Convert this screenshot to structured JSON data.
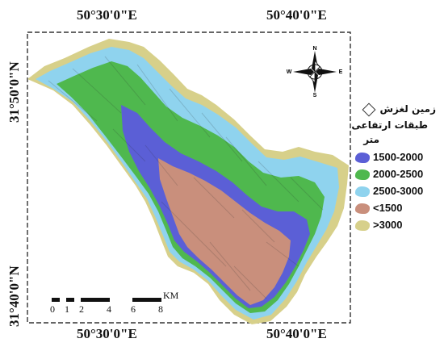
{
  "coordinates": {
    "top_left": "50°30'0\"E",
    "top_right": "50°40'0\"E",
    "bottom_left": "50°30'0\"E",
    "bottom_right": "50°40'0\"E",
    "left_upper": "31°50'0\"N",
    "left_lower": "31°40'0\"N"
  },
  "legend": {
    "title_landslide": "زمین لغزش",
    "title_classes": "طبقات ارتفاعی",
    "title_unit": "متر",
    "items": [
      {
        "label": "1500-2000",
        "color": "#5b5fd6"
      },
      {
        "label": "2000-2500",
        "color": "#4fb84e"
      },
      {
        "label": "2500-3000",
        "color": "#8fd3ee"
      },
      {
        "label": "<1500",
        "color": "#c98f7c"
      },
      {
        "label": ">3000",
        "color": "#d9d48a"
      }
    ]
  },
  "scale_bar": {
    "unit": "KM",
    "ticks": [
      "0",
      "1",
      "2",
      "4",
      "6",
      "8"
    ]
  },
  "compass": {
    "n": "N",
    "s": "S",
    "e": "E",
    "w": "W"
  }
}
